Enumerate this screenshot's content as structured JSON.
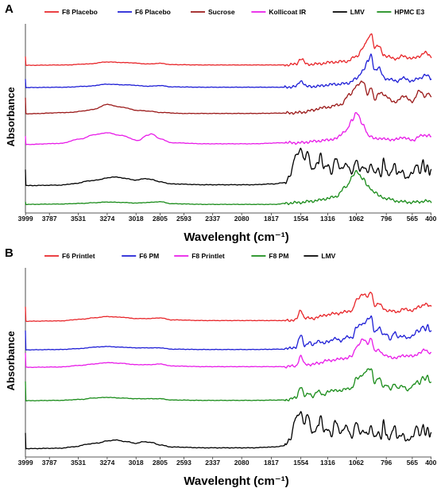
{
  "chart_data": [
    {
      "type": "line",
      "panel_label": "A",
      "xlabel": "Wavelenght (cm⁻¹)",
      "ylabel": "Absorbance",
      "x_reversed": true,
      "xlim": [
        4000,
        395
      ],
      "ticks": [
        3999,
        3787,
        3531,
        3274,
        3018,
        2805,
        2593,
        2337,
        2080,
        1817,
        1554,
        1316,
        1062,
        796,
        565,
        400
      ],
      "tick_labels": [
        "3999",
        "3787",
        "3531",
        "3274",
        "3018",
        "2805",
        "2593",
        "2337",
        "2080",
        "1817",
        "1554",
        "1316",
        "1062",
        "796",
        "565",
        "400"
      ],
      "legend_position": "top",
      "series": [
        {
          "name": "F8 Placebo",
          "color": "#e8262a",
          "baseline": 0.875,
          "spectrum": "placebo"
        },
        {
          "name": "F6 Placebo",
          "color": "#1f1fd6",
          "baseline": 0.735,
          "spectrum": "placebo"
        },
        {
          "name": "Sucrose",
          "color": "#9b1a1a",
          "baseline": 0.57,
          "spectrum": "sucrose"
        },
        {
          "name": "Kollicoat IR",
          "color": "#e81ce8",
          "baseline": 0.375,
          "spectrum": "kollicoat"
        },
        {
          "name": "LMV",
          "color": "#000000",
          "baseline": 0.12,
          "spectrum": "lmv"
        },
        {
          "name": "HPMC E3",
          "color": "#1a8c1a",
          "baseline": 0.0,
          "spectrum": "hpmc"
        }
      ]
    },
    {
      "type": "line",
      "panel_label": "B",
      "xlabel": "Wavelenght (cm⁻¹)",
      "ylabel": "Absorbance",
      "x_reversed": true,
      "xlim": [
        4000,
        395
      ],
      "ticks": [
        3999,
        3787,
        3531,
        3274,
        3018,
        2805,
        2593,
        2337,
        2080,
        1817,
        1554,
        1316,
        1062,
        796,
        565,
        400
      ],
      "tick_labels": [
        "3999",
        "3787",
        "3531",
        "3274",
        "3018",
        "2805",
        "2593",
        "2337",
        "2080",
        "1817",
        "1554",
        "1316",
        "1062",
        "796",
        "565",
        "400"
      ],
      "legend_position": "top",
      "series": [
        {
          "name": "F6 Printlet",
          "color": "#e8262a",
          "baseline": 0.8,
          "spectrum": "printlet"
        },
        {
          "name": "F6 PM",
          "color": "#1f1fd6",
          "baseline": 0.62,
          "spectrum": "pm"
        },
        {
          "name": "F8 Printlet",
          "color": "#e81ce8",
          "baseline": 0.51,
          "spectrum": "printlet"
        },
        {
          "name": "F8 PM",
          "color": "#1a8c1a",
          "baseline": 0.3,
          "spectrum": "pm"
        },
        {
          "name": "LMV",
          "color": "#000000",
          "baseline": 0.0,
          "spectrum": "lmv"
        }
      ]
    }
  ]
}
